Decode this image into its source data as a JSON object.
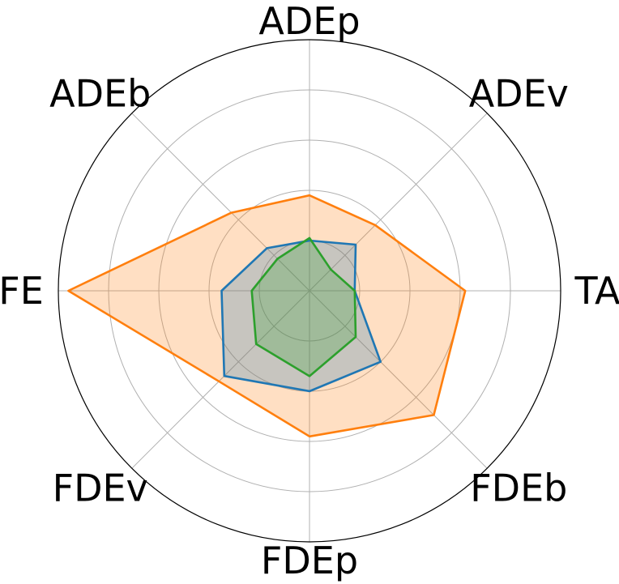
{
  "chart_data": {
    "type": "radar",
    "title": "",
    "axes": [
      "ADEp",
      "ADEv",
      "TAE",
      "FDEb",
      "FDEp",
      "FDEv",
      "TFE",
      "ADEb"
    ],
    "rlim": [
      0,
      1
    ],
    "grid": true,
    "legend": "none",
    "series": [
      {
        "color": "#ff7f0e",
        "filled": true,
        "values": [
          0.38,
          0.37,
          0.62,
          0.7,
          0.58,
          0.51,
          0.96,
          0.44
        ]
      },
      {
        "color": "#1f77b4",
        "filled": true,
        "values": [
          0.2,
          0.26,
          0.18,
          0.4,
          0.4,
          0.48,
          0.35,
          0.24
        ]
      },
      {
        "color": "#2ca02c",
        "filled": true,
        "values": [
          0.21,
          0.12,
          0.18,
          0.26,
          0.34,
          0.3,
          0.23,
          0.18
        ]
      }
    ]
  }
}
